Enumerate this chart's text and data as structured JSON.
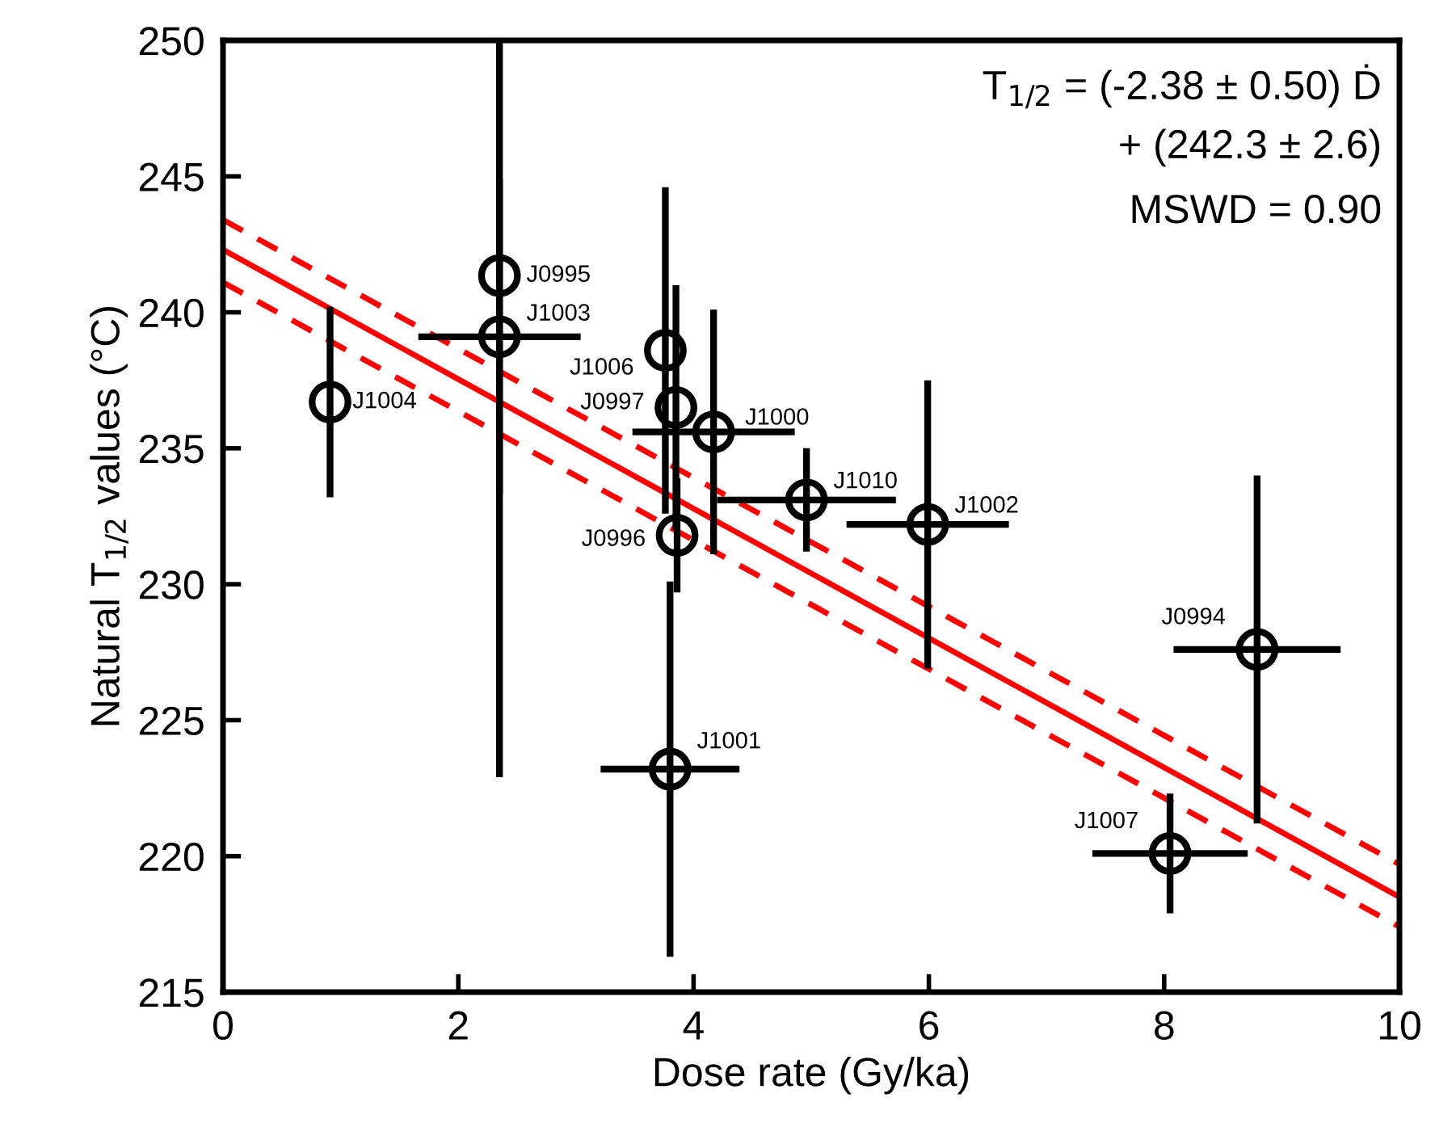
{
  "chart_data": {
    "type": "scatter",
    "xlabel": "Dose rate (Gy/ka)",
    "ylabel": "Natural T$_{1/2}$ values (°C)",
    "xlim": [
      0,
      10
    ],
    "xticks": [
      0,
      2,
      4,
      6,
      8,
      10
    ],
    "ylim": [
      215,
      250
    ],
    "yticks": [
      215,
      220,
      225,
      230,
      235,
      240,
      245,
      250
    ],
    "grid": false,
    "series": [
      {
        "marker": "circle",
        "color": "#000000",
        "x": [
          0.91,
          2.35,
          2.35,
          3.76,
          3.85,
          4.17,
          3.86,
          4.96,
          5.99,
          3.8,
          8.79,
          8.05
        ],
        "values": [
          236.7,
          241.35,
          239.1,
          238.6,
          236.5,
          235.6,
          231.8,
          233.1,
          232.2,
          223.2,
          227.6,
          220.1
        ],
        "errors": [
          3.5,
          [
            222.9,
            250
          ],
          5.8,
          6.0,
          4.5,
          4.5,
          2.1,
          1.9,
          5.3,
          6.9,
          6.4,
          2.2
        ],
        "xerrors": [
          null,
          null,
          0.69,
          null,
          null,
          0.69,
          null,
          0.76,
          0.69,
          0.59,
          0.71,
          0.66
        ]
      },
      {
        "type": "line",
        "marker": "none",
        "color": "#ff0000",
        "line_style": "solid",
        "x": [
          0,
          10
        ],
        "values": [
          242.3,
          218.5
        ]
      },
      {
        "type": "line",
        "marker": "none",
        "color": "#ff0000",
        "line_style": "dashed",
        "x": [
          0,
          10
        ],
        "values": [
          243.4,
          219.7
        ]
      },
      {
        "type": "line",
        "marker": "none",
        "color": "#ff0000",
        "line_style": "dashed",
        "x": [
          0,
          10
        ],
        "values": [
          241.1,
          217.4
        ]
      }
    ],
    "annotations": [
      {
        "text": "J1004",
        "x": 0.91,
        "y": 236.7
      },
      {
        "text": "J0995",
        "x": 2.35,
        "y": 241.35
      },
      {
        "text": "J1003",
        "x": 2.35,
        "y": 239.1
      },
      {
        "text": "J1006",
        "x": 3.76,
        "y": 238.6
      },
      {
        "text": "J0997",
        "x": 3.85,
        "y": 236.5
      },
      {
        "text": "J1000",
        "x": 4.17,
        "y": 235.6
      },
      {
        "text": "J0996",
        "x": 3.86,
        "y": 231.8
      },
      {
        "text": "J1010",
        "x": 4.96,
        "y": 233.1
      },
      {
        "text": "J1002",
        "x": 5.99,
        "y": 232.2
      },
      {
        "text": "J1001",
        "x": 3.8,
        "y": 223.2
      },
      {
        "text": "J0994",
        "x": 8.79,
        "y": 227.6
      },
      {
        "text": "J1007",
        "x": 8.05,
        "y": 220.1
      },
      "T$_{1/2}$ = (-2.38 ± 0.50) Ḋ",
      "+ (242.3 ± 2.6)",
      "MSWD = 0.90"
    ]
  }
}
